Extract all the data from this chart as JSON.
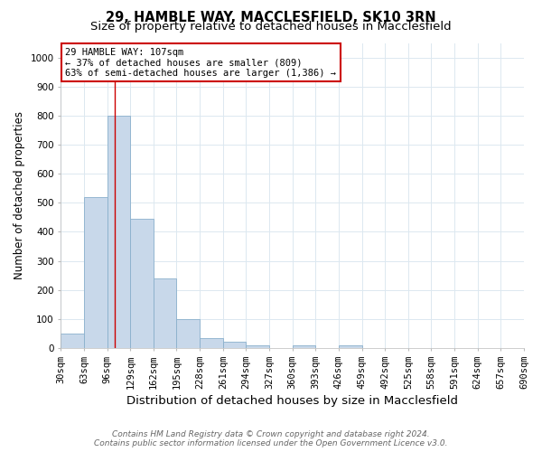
{
  "title": "29, HAMBLE WAY, MACCLESFIELD, SK10 3RN",
  "subtitle": "Size of property relative to detached houses in Macclesfield",
  "xlabel": "Distribution of detached houses by size in Macclesfield",
  "ylabel": "Number of detached properties",
  "bin_edges": [
    30,
    63,
    96,
    129,
    162,
    195,
    228,
    261,
    294,
    327,
    360,
    393,
    426,
    459,
    492,
    525,
    558,
    591,
    624,
    657,
    690
  ],
  "bar_heights": [
    50,
    520,
    800,
    445,
    240,
    98,
    35,
    20,
    10,
    0,
    8,
    0,
    8,
    0,
    0,
    0,
    0,
    0,
    0,
    0
  ],
  "bar_color": "#c8d8ea",
  "bar_edge_color": "#8ab0cc",
  "vline_x": 107,
  "vline_color": "#cc0000",
  "annotation_line1": "29 HAMBLE WAY: 107sqm",
  "annotation_line2": "← 37% of detached houses are smaller (809)",
  "annotation_line3": "63% of semi-detached houses are larger (1,386) →",
  "annotation_box_color": "white",
  "annotation_box_edge_color": "#cc0000",
  "ylim": [
    0,
    1050
  ],
  "yticks": [
    0,
    100,
    200,
    300,
    400,
    500,
    600,
    700,
    800,
    900,
    1000
  ],
  "grid_color": "#dce8f0",
  "background_color": "#ffffff",
  "footer_line1": "Contains HM Land Registry data © Crown copyright and database right 2024.",
  "footer_line2": "Contains public sector information licensed under the Open Government Licence v3.0.",
  "title_fontsize": 10.5,
  "subtitle_fontsize": 9.5,
  "xlabel_fontsize": 9.5,
  "ylabel_fontsize": 8.5,
  "tick_fontsize": 7.5,
  "annotation_fontsize": 7.5,
  "footer_fontsize": 6.5
}
